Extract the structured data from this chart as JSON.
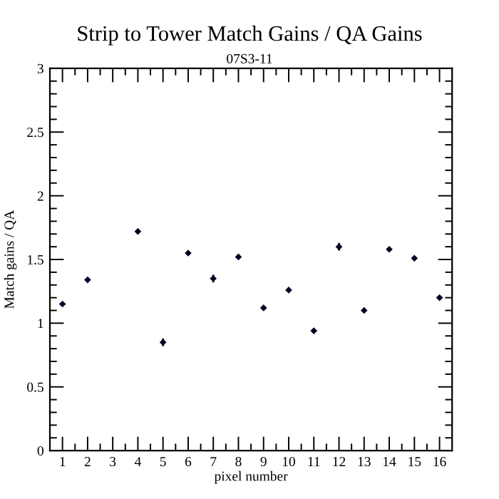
{
  "chart_data": {
    "type": "scatter",
    "title": "Strip to Tower Match Gains / QA Gains",
    "subtitle": "07S3-11",
    "xlabel": "pixel number",
    "ylabel": "Match gains / QA",
    "x": [
      1,
      2,
      3,
      4,
      5,
      6,
      7,
      8,
      9,
      10,
      11,
      12,
      13,
      14,
      15,
      16
    ],
    "series": [
      {
        "color": "#000022",
        "values": [
          1.15,
          1.34,
          null,
          1.72,
          0.85,
          1.55,
          1.35,
          1.52,
          1.12,
          1.26,
          0.94,
          1.6,
          1.1,
          1.58,
          1.51,
          1.2
        ],
        "errors": [
          null,
          null,
          null,
          null,
          0.03,
          null,
          0.03,
          null,
          null,
          null,
          null,
          0.03,
          null,
          null,
          null,
          null
        ]
      }
    ],
    "marker": "diamond",
    "grid": false,
    "legend": false,
    "xlim": [
      0.5,
      16.5
    ],
    "xticks": [
      1,
      2,
      3,
      4,
      5,
      6,
      7,
      8,
      9,
      10,
      11,
      12,
      13,
      14,
      15,
      16,
      {
        "value": 1.5,
        "label": null
      },
      {
        "value": 2.5,
        "label": null
      },
      {
        "value": 3.5,
        "label": null
      },
      {
        "value": 4.5,
        "label": null
      },
      {
        "value": 5.5,
        "label": null
      },
      {
        "value": 6.5,
        "label": null
      },
      {
        "value": 7.5,
        "label": null
      },
      {
        "value": 8.5,
        "label": null
      },
      {
        "value": 9.5,
        "label": null
      },
      {
        "value": 10.5,
        "label": null
      },
      {
        "value": 11.5,
        "label": null
      },
      {
        "value": 12.5,
        "label": null
      },
      {
        "value": 13.5,
        "label": null
      },
      {
        "value": 14.5,
        "label": null
      },
      {
        "value": 15.5,
        "label": null
      }
    ],
    "ylim": [
      0,
      3
    ],
    "yticks": [
      0,
      0.5,
      1,
      1.5,
      2,
      2.5,
      3,
      {
        "value": 0.1,
        "label": null
      },
      {
        "value": 0.2,
        "label": null
      },
      {
        "value": 0.3,
        "label": null
      },
      {
        "value": 0.4,
        "label": null
      },
      {
        "value": 0.6,
        "label": null
      },
      {
        "value": 0.7,
        "label": null
      },
      {
        "value": 0.8,
        "label": null
      },
      {
        "value": 0.9,
        "label": null
      },
      {
        "value": 1.1,
        "label": null
      },
      {
        "value": 1.2,
        "label": null
      },
      {
        "value": 1.3,
        "label": null
      },
      {
        "value": 1.4,
        "label": null
      },
      {
        "value": 1.6,
        "label": null
      },
      {
        "value": 1.7,
        "label": null
      },
      {
        "value": 1.8,
        "label": null
      },
      {
        "value": 1.9,
        "label": null
      },
      {
        "value": 2.1,
        "label": null
      },
      {
        "value": 2.2,
        "label": null
      },
      {
        "value": 2.3,
        "label": null
      },
      {
        "value": 2.4,
        "label": null
      },
      {
        "value": 2.6,
        "label": null
      },
      {
        "value": 2.7,
        "label": null
      },
      {
        "value": 2.8,
        "label": null
      },
      {
        "value": 2.9,
        "label": null
      }
    ]
  }
}
